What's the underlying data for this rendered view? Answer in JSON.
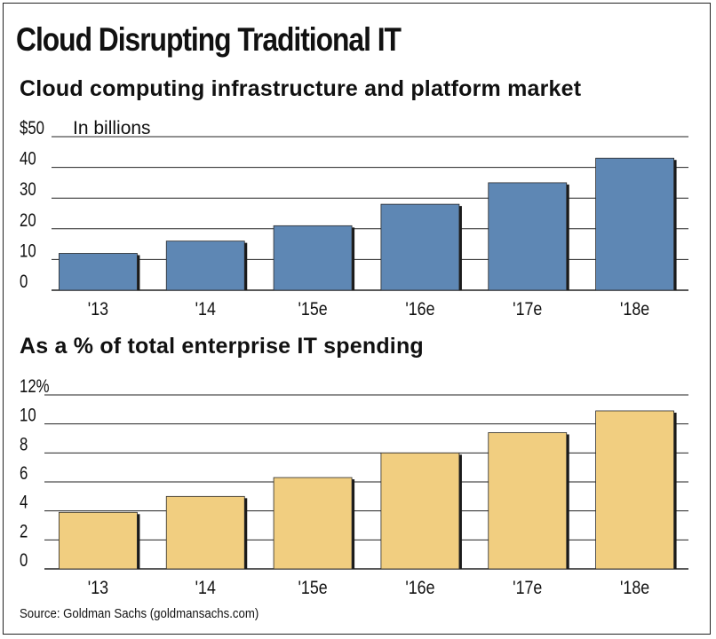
{
  "title": "Cloud Disrupting Traditional IT",
  "source": "Source: Goldman Sachs (goldmansachs.com)",
  "colors": {
    "blue": "#5e87b4",
    "gold": "#f1ce80",
    "shadow": "#1a1a1a",
    "grid": "#222222"
  },
  "chart_data": [
    {
      "type": "bar",
      "title": "Cloud computing infrastructure and platform market",
      "unit_note": "In billions",
      "categories": [
        "'13",
        "'14",
        "'15e",
        "'16e",
        "'17e",
        "'18e"
      ],
      "values": [
        12,
        16,
        21,
        28,
        35,
        43
      ],
      "ylim": [
        0,
        50
      ],
      "yticks": [
        0,
        10,
        20,
        30,
        40,
        50
      ],
      "ytick_labels": [
        "0",
        "10",
        "20",
        "30",
        "40",
        "$50"
      ],
      "grid": true,
      "color": "#5e87b4"
    },
    {
      "type": "bar",
      "title": "As a % of total enterprise IT spending",
      "categories": [
        "'13",
        "'14",
        "'15e",
        "'16e",
        "'17e",
        "'18e"
      ],
      "values": [
        3.9,
        5.0,
        6.3,
        8.0,
        9.4,
        10.9
      ],
      "ylim": [
        0,
        12
      ],
      "yticks": [
        0,
        2,
        4,
        6,
        8,
        10,
        12
      ],
      "ytick_labels": [
        "0",
        "2",
        "4",
        "6",
        "8",
        "10",
        "12%"
      ],
      "grid": true,
      "color": "#f1ce80"
    }
  ]
}
